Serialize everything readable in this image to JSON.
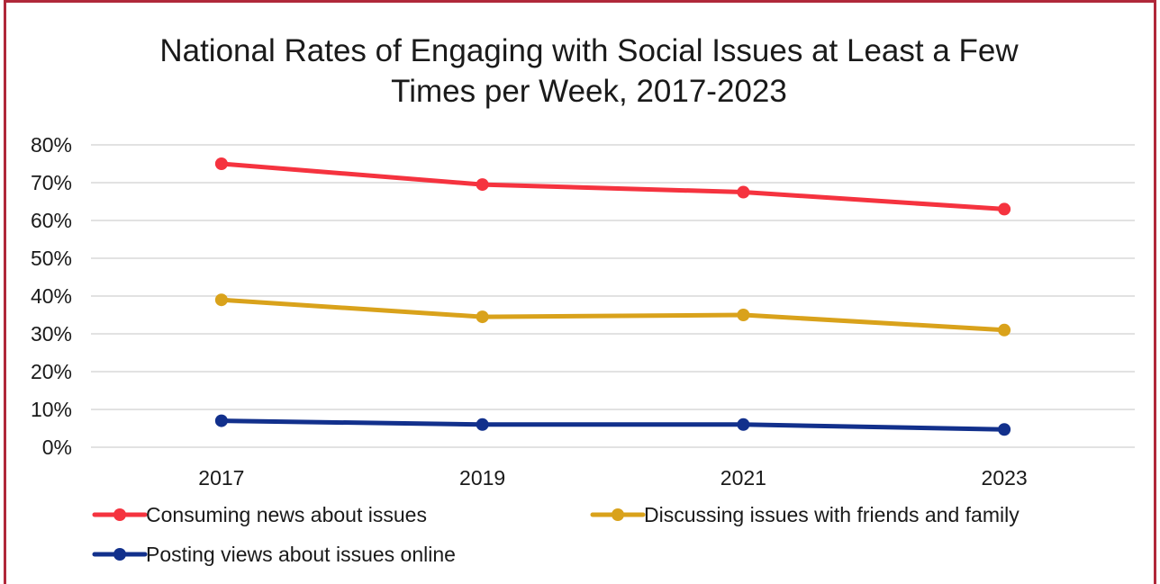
{
  "chart_data": {
    "type": "line",
    "title_lines": [
      "National Rates of Engaging with Social Issues at Least a Few",
      "Times per Week, 2017-2023"
    ],
    "xlabel": "",
    "ylabel": "",
    "categories": [
      "2017",
      "2019",
      "2021",
      "2023"
    ],
    "ylim": [
      0,
      80
    ],
    "yticks": [
      0,
      10,
      20,
      30,
      40,
      50,
      60,
      70,
      80
    ],
    "ytick_labels": [
      "0%",
      "10%",
      "20%",
      "30%",
      "40%",
      "50%",
      "60%",
      "70%",
      "80%"
    ],
    "grid": true,
    "legend_position": "bottom",
    "series": [
      {
        "name": "Consuming news about issues",
        "color": "#f5333f",
        "values": [
          75,
          69.5,
          67.5,
          63
        ]
      },
      {
        "name": "Discussing issues with friends and family",
        "color": "#d9a21b",
        "values": [
          39,
          34.5,
          35,
          31
        ]
      },
      {
        "name": "Posting views about issues online",
        "color": "#12308c",
        "values": [
          7,
          6,
          6,
          4.7
        ]
      }
    ]
  }
}
